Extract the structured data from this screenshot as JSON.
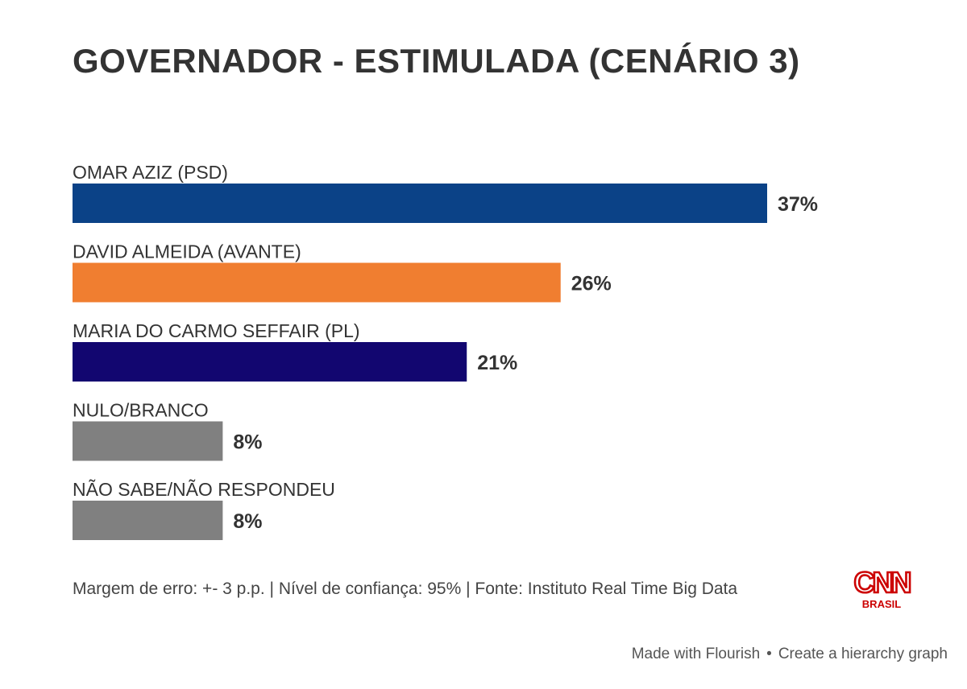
{
  "chart_data": {
    "type": "bar",
    "orientation": "horizontal",
    "title": "GOVERNADOR - ESTIMULADA (CENÁRIO 3)",
    "categories": [
      "OMAR AZIZ (PSD)",
      "DAVID ALMEIDA (AVANTE)",
      "MARIA DO CARMO SEFFAIR (PL)",
      "NULO/BRANCO",
      "NÃO SABE/NÃO RESPONDEU"
    ],
    "values": [
      37,
      26,
      21,
      8,
      8
    ],
    "value_labels": [
      "37%",
      "26%",
      "21%",
      "8%",
      "8%"
    ],
    "colors": [
      "#0b4287",
      "#f07e30",
      "#120670",
      "#808080",
      "#808080"
    ],
    "xlim": [
      0,
      37
    ],
    "grid": false,
    "legend": "none"
  },
  "footer": {
    "note": "Margem de erro: +- 3 p.p. | Nível de confiança: 95% | Fonte: Instituto Real Time Big Data",
    "flourish_made": "Made with Flourish",
    "flourish_sep": "•",
    "flourish_link": "Create a hierarchy graph"
  },
  "logo": {
    "text": "CNN",
    "subtext": "BRASIL",
    "color": "#cc0000"
  }
}
